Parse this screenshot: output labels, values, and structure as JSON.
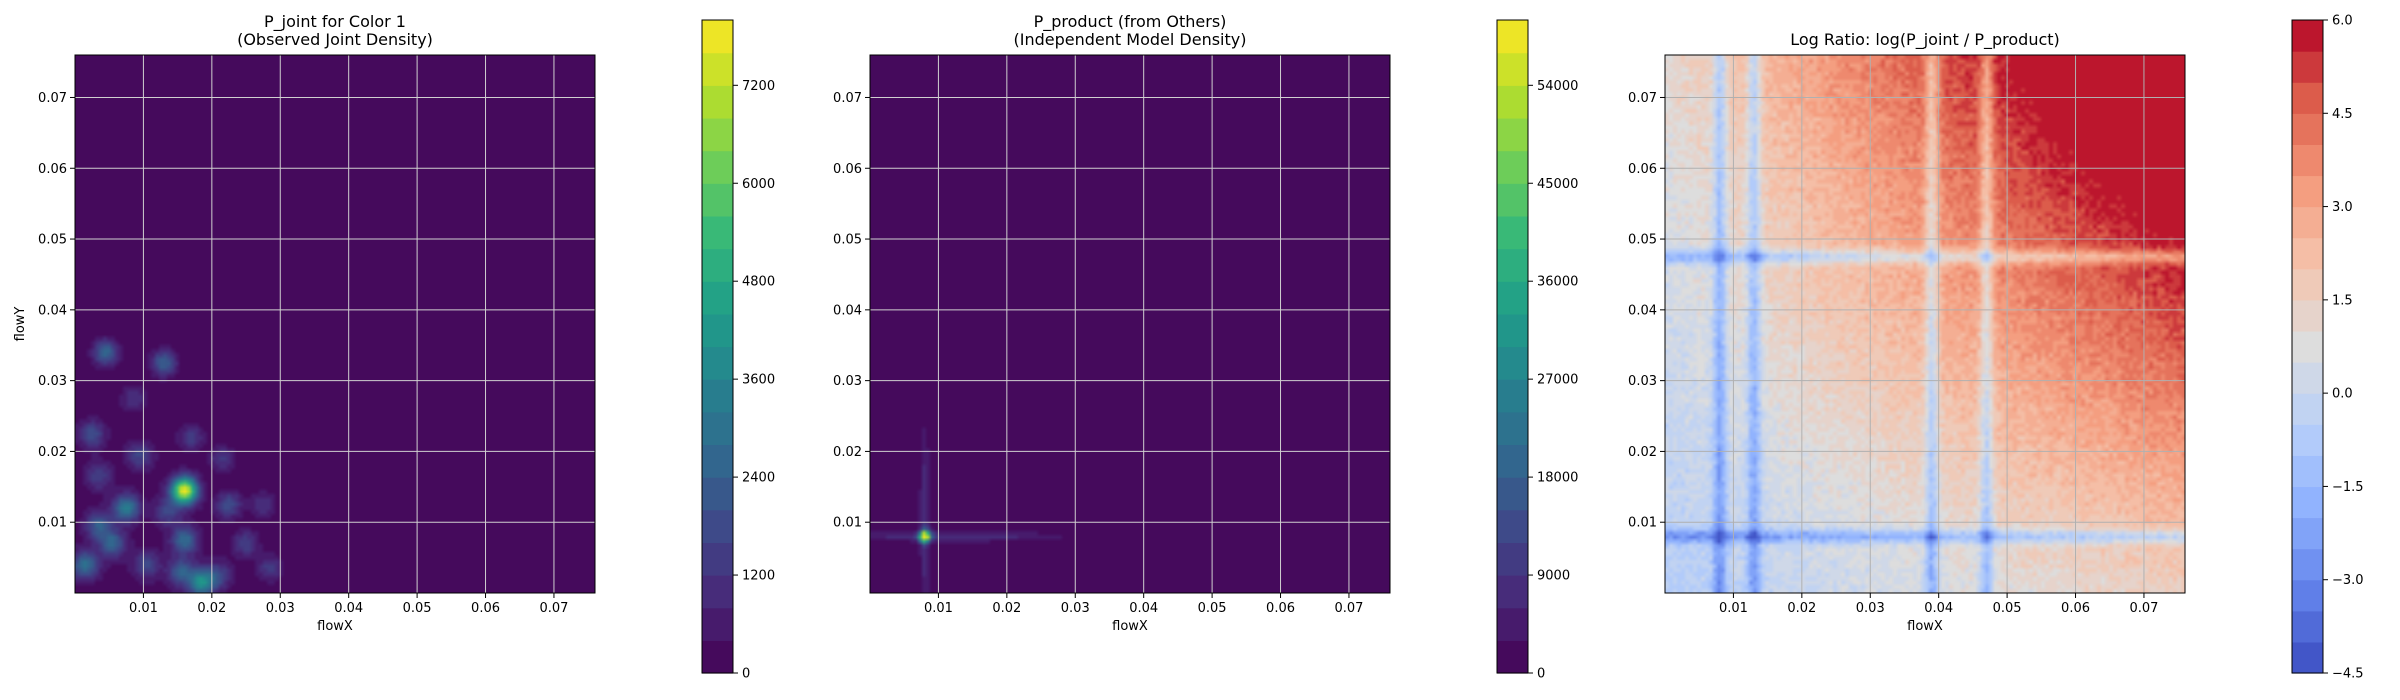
{
  "chart_data": [
    {
      "type": "heatmap",
      "title": "P_joint for Color 1\n(Observed Joint Density)",
      "xlabel": "flowX",
      "ylabel": "flowY",
      "xlim": [
        0.0,
        0.076
      ],
      "ylim": [
        0.0,
        0.076
      ],
      "x_ticks": [
        "0.01",
        "0.02",
        "0.03",
        "0.04",
        "0.05",
        "0.06",
        "0.07"
      ],
      "y_ticks": [
        "0.01",
        "0.02",
        "0.03",
        "0.04",
        "0.05",
        "0.06",
        "0.07"
      ],
      "x_tick_values": [
        0.01,
        0.02,
        0.03,
        0.04,
        0.05,
        0.06,
        0.07
      ],
      "y_tick_values": [
        0.01,
        0.02,
        0.03,
        0.04,
        0.05,
        0.06,
        0.07
      ],
      "grid": true,
      "colormap": "viridis",
      "colorbar": {
        "min": 0,
        "max": 8000,
        "ticks": [
          0,
          1200,
          2400,
          3600,
          4800,
          6000,
          7200
        ],
        "tick_labels": [
          "0",
          "1200",
          "2400",
          "3600",
          "4800",
          "6000",
          "7200"
        ]
      },
      "density_peaks": [
        {
          "x": 0.016,
          "y": 0.0145,
          "value": 7600
        },
        {
          "x": 0.0075,
          "y": 0.012,
          "value": 3200
        },
        {
          "x": 0.0045,
          "y": 0.034,
          "value": 2600
        },
        {
          "x": 0.013,
          "y": 0.0325,
          "value": 2400
        },
        {
          "x": 0.0025,
          "y": 0.0225,
          "value": 1800
        },
        {
          "x": 0.0035,
          "y": 0.0095,
          "value": 2200
        },
        {
          "x": 0.0015,
          "y": 0.004,
          "value": 2800
        },
        {
          "x": 0.0055,
          "y": 0.007,
          "value": 2400
        },
        {
          "x": 0.016,
          "y": 0.0075,
          "value": 2600
        },
        {
          "x": 0.0185,
          "y": 0.0015,
          "value": 3800
        },
        {
          "x": 0.0155,
          "y": 0.003,
          "value": 2200
        },
        {
          "x": 0.0105,
          "y": 0.004,
          "value": 1600
        },
        {
          "x": 0.0225,
          "y": 0.0125,
          "value": 1800
        },
        {
          "x": 0.025,
          "y": 0.007,
          "value": 1500
        },
        {
          "x": 0.0285,
          "y": 0.0035,
          "value": 1400
        },
        {
          "x": 0.0095,
          "y": 0.0195,
          "value": 1500
        },
        {
          "x": 0.017,
          "y": 0.022,
          "value": 1400
        },
        {
          "x": 0.0215,
          "y": 0.019,
          "value": 1300
        },
        {
          "x": 0.0085,
          "y": 0.0275,
          "value": 1200
        },
        {
          "x": 0.0035,
          "y": 0.0165,
          "value": 1300
        },
        {
          "x": 0.0275,
          "y": 0.0125,
          "value": 1200
        },
        {
          "x": 0.0135,
          "y": 0.0115,
          "value": 1500
        },
        {
          "x": 0.021,
          "y": 0.0025,
          "value": 1500
        }
      ]
    },
    {
      "type": "heatmap",
      "title": "P_product (from Others)\n(Independent Model Density)",
      "xlabel": "flowX",
      "ylabel": "",
      "xlim": [
        0.0,
        0.076
      ],
      "ylim": [
        0.0,
        0.076
      ],
      "x_ticks": [
        "0.01",
        "0.02",
        "0.03",
        "0.04",
        "0.05",
        "0.06",
        "0.07"
      ],
      "y_ticks": [
        "0.01",
        "0.02",
        "0.03",
        "0.04",
        "0.05",
        "0.06",
        "0.07"
      ],
      "x_tick_values": [
        0.01,
        0.02,
        0.03,
        0.04,
        0.05,
        0.06,
        0.07
      ],
      "y_tick_values": [
        0.01,
        0.02,
        0.03,
        0.04,
        0.05,
        0.06,
        0.07
      ],
      "grid": true,
      "colormap": "viridis",
      "colorbar": {
        "min": 0,
        "max": 60000,
        "ticks": [
          0,
          9000,
          18000,
          27000,
          36000,
          45000,
          54000
        ],
        "tick_labels": [
          "0",
          "9000",
          "18000",
          "27000",
          "36000",
          "45000",
          "54000"
        ]
      },
      "density_peaks": [
        {
          "x": 0.008,
          "y": 0.008,
          "value": 58000
        }
      ],
      "marginal_lines_x": [
        0.008,
        0.013
      ],
      "marginal_lines_y": [
        0.008,
        0.013
      ]
    },
    {
      "type": "heatmap",
      "title": "Log Ratio: log(P_joint / P_product)",
      "xlabel": "flowX",
      "ylabel": "",
      "xlim": [
        0.0,
        0.076
      ],
      "ylim": [
        0.0,
        0.076
      ],
      "x_ticks": [
        "0.01",
        "0.02",
        "0.03",
        "0.04",
        "0.05",
        "0.06",
        "0.07"
      ],
      "y_ticks": [
        "0.01",
        "0.02",
        "0.03",
        "0.04",
        "0.05",
        "0.06",
        "0.07"
      ],
      "x_tick_values": [
        0.01,
        0.02,
        0.03,
        0.04,
        0.05,
        0.06,
        0.07
      ],
      "y_tick_values": [
        0.01,
        0.02,
        0.03,
        0.04,
        0.05,
        0.06,
        0.07
      ],
      "grid": true,
      "colormap": "coolwarm",
      "colorbar": {
        "min": -4.5,
        "max": 6.0,
        "ticks": [
          -4.5,
          -3.0,
          -1.5,
          0.0,
          1.5,
          3.0,
          4.5,
          6.0
        ],
        "tick_labels": [
          "−4.5",
          "−3.0",
          "−1.5",
          "0.0",
          "1.5",
          "3.0",
          "4.5",
          "6.0"
        ]
      },
      "blue_bands_x": [
        0.008,
        0.013,
        0.039,
        0.047
      ],
      "blue_bands_y": [
        0.008,
        0.0475
      ],
      "trend": "log ratio increases toward high flowX and high flowY (red, up to about 5.5 at the top-right corner); near 0 in the middle; blue bands of about -2 along the marginal peak lines"
    }
  ]
}
